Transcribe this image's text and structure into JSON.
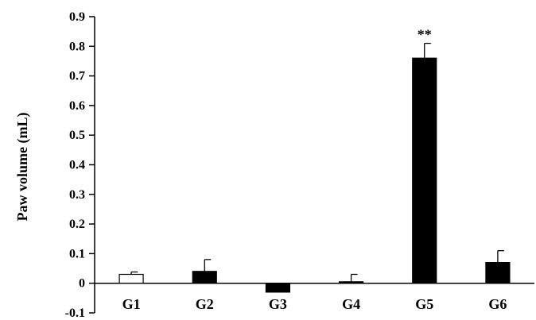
{
  "chart_data": {
    "type": "bar",
    "title": "",
    "xlabel": "",
    "ylabel": "Paw volume (mL)",
    "ylim": [
      -0.1,
      0.9
    ],
    "yticks": [
      -0.1,
      0,
      0.1,
      0.2,
      0.3,
      0.4,
      0.5,
      0.6,
      0.7,
      0.8,
      0.9
    ],
    "ytick_labels": [
      "-0.1",
      "0",
      "0.1",
      "0.2",
      "0.3",
      "0.4",
      "0.5",
      "0.6",
      "0.7",
      "0.8",
      "0.9"
    ],
    "grid": false,
    "legend": "none",
    "categories": [
      "G1",
      "G2",
      "G3",
      "G4",
      "G5",
      "G6"
    ],
    "values": [
      0.03,
      0.04,
      -0.03,
      0.005,
      0.76,
      0.07
    ],
    "errors": [
      0.008,
      0.04,
      0.0,
      0.025,
      0.05,
      0.04
    ],
    "bar_colors": [
      "#ffffff",
      "#000000",
      "#000000",
      "#000000",
      "#000000",
      "#000000"
    ],
    "annotations": [
      {
        "category": "G5",
        "text": "**"
      }
    ]
  }
}
